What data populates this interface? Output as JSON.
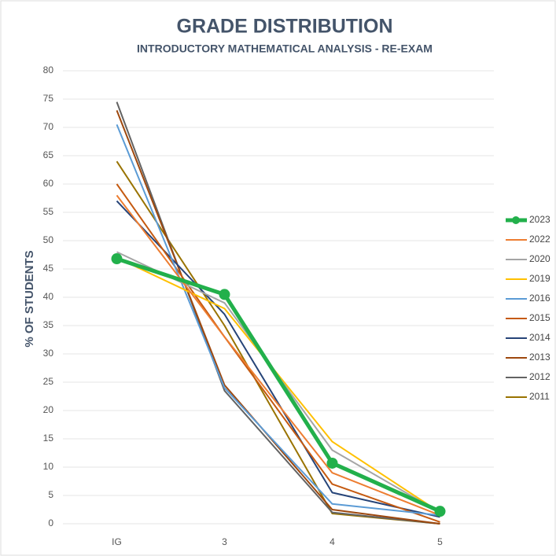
{
  "chart_data": {
    "type": "line",
    "title": "GRADE DISTRIBUTION",
    "subtitle": "INTRODUCTORY MATHEMATICAL ANALYSIS - RE-EXAM",
    "y_label": "% OF STUDENTS",
    "categories": [
      "IG",
      "3",
      "4",
      "5"
    ],
    "ylim": [
      0,
      80
    ],
    "yticks": [
      0,
      5,
      10,
      15,
      20,
      25,
      30,
      35,
      40,
      45,
      50,
      55,
      60,
      65,
      70,
      75,
      80
    ],
    "grid": true,
    "legend": "right",
    "series": [
      {
        "name": "2023",
        "color": "#22b04b",
        "marker": true,
        "values": [
          46.8,
          40.5,
          10.7,
          2.2
        ]
      },
      {
        "name": "2022",
        "color": "#ed7d31",
        "values": [
          58,
          33,
          9,
          1.5
        ]
      },
      {
        "name": "2020",
        "color": "#a5a5a5",
        "values": [
          48,
          39,
          13,
          2
        ]
      },
      {
        "name": "2019",
        "color": "#ffc000",
        "values": [
          47,
          38,
          14.5,
          2
        ]
      },
      {
        "name": "2016",
        "color": "#5b9bd5",
        "values": [
          70.5,
          24,
          3.5,
          1.5
        ]
      },
      {
        "name": "2015",
        "color": "#c55a11",
        "values": [
          60,
          33,
          7,
          0.3
        ]
      },
      {
        "name": "2014",
        "color": "#264478",
        "values": [
          57,
          37,
          5.5,
          1.2
        ]
      },
      {
        "name": "2013",
        "color": "#9e480e",
        "values": [
          73,
          24.5,
          2.5,
          0
        ]
      },
      {
        "name": "2012",
        "color": "#636363",
        "values": [
          74.5,
          23.5,
          2,
          0
        ]
      },
      {
        "name": "2011",
        "color": "#997300",
        "values": [
          64,
          35,
          1.8,
          0
        ]
      }
    ]
  }
}
